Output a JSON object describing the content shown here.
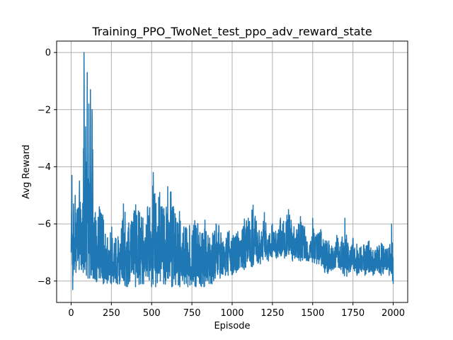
{
  "chart_data": {
    "type": "line",
    "title": "Training_PPO_TwoNet_test_ppo_adv_reward_state",
    "xlabel": "Episode",
    "ylabel": "Avg Reward",
    "xlim": [
      -90,
      2090
    ],
    "ylim": [
      -8.75,
      0.4
    ],
    "x_ticks": [
      0,
      250,
      500,
      750,
      1000,
      1250,
      1500,
      1750,
      2000
    ],
    "y_ticks": [
      0,
      -2,
      -4,
      -6,
      -8
    ],
    "x_tick_labels": [
      "0",
      "250",
      "500",
      "750",
      "1000",
      "1250",
      "1500",
      "1750",
      "2000"
    ],
    "y_tick_labels": [
      "0",
      "−2",
      "−4",
      "−6",
      "−8"
    ],
    "grid": true,
    "series": [
      {
        "color": "#1f77b4",
        "envelope_x": [
          0,
          5,
          10,
          15,
          20,
          25,
          30,
          40,
          50,
          60,
          65,
          70,
          75,
          80,
          85,
          90,
          95,
          100,
          105,
          110,
          115,
          120,
          125,
          130,
          140,
          150,
          160,
          175,
          200,
          225,
          250,
          275,
          300,
          325,
          350,
          375,
          400,
          425,
          450,
          475,
          500,
          510,
          525,
          550,
          575,
          600,
          625,
          650,
          675,
          700,
          725,
          750,
          775,
          800,
          825,
          850,
          875,
          900,
          925,
          950,
          975,
          1000,
          1025,
          1050,
          1075,
          1100,
          1125,
          1150,
          1175,
          1200,
          1225,
          1250,
          1275,
          1300,
          1325,
          1350,
          1375,
          1400,
          1425,
          1450,
          1475,
          1500,
          1525,
          1550,
          1575,
          1600,
          1625,
          1650,
          1675,
          1700,
          1725,
          1750,
          1775,
          1800,
          1825,
          1850,
          1875,
          1900,
          1925,
          1950,
          1975,
          1990,
          2000
        ],
        "y_max": [
          -6.6,
          -4.3,
          -5.8,
          -5.3,
          -6.4,
          -5.0,
          -4.4,
          -5.5,
          -4.0,
          -5.5,
          -3.9,
          -5.8,
          -3.6,
          0.0,
          -4.5,
          -2.6,
          -5.0,
          -0.7,
          -4.6,
          -1.8,
          -5.2,
          -1.3,
          -4.8,
          -2.0,
          -4.5,
          -5.6,
          -6.0,
          -5.4,
          -5.7,
          -6.5,
          -6.0,
          -6.5,
          -6.2,
          -5.3,
          -5.8,
          -5.9,
          -5.3,
          -5.6,
          -5.8,
          -5.4,
          -4.6,
          -4.2,
          -5.2,
          -4.9,
          -5.4,
          -4.7,
          -4.9,
          -5.8,
          -5.4,
          -6.1,
          -5.8,
          -6.4,
          -5.6,
          -6.3,
          -5.7,
          -6.4,
          -6.3,
          -6.0,
          -5.9,
          -6.8,
          -6.1,
          -6.5,
          -6.0,
          -6.6,
          -5.8,
          -5.8,
          -5.2,
          -5.9,
          -6.3,
          -5.6,
          -6.2,
          -6.0,
          -6.2,
          -5.8,
          -5.7,
          -5.5,
          -5.8,
          -6.2,
          -5.7,
          -6.1,
          -6.7,
          -5.8,
          -6.4,
          -6.2,
          -6.5,
          -6.6,
          -6.8,
          -6.4,
          -6.7,
          -5.8,
          -6.9,
          -6.5,
          -6.7,
          -6.8,
          -6.6,
          -6.6,
          -6.9,
          -6.8,
          -6.6,
          -6.9,
          -6.8,
          -6.0,
          -6.8
        ],
        "y_min": [
          -7.0,
          -7.2,
          -8.3,
          -7.5,
          -7.6,
          -7.4,
          -7.7,
          -7.5,
          -7.6,
          -7.4,
          -7.6,
          -7.5,
          -7.7,
          -7.4,
          -7.6,
          -7.5,
          -7.8,
          -7.6,
          -7.9,
          -7.8,
          -7.9,
          -8.0,
          -7.8,
          -8.0,
          -7.9,
          -8.1,
          -8.0,
          -8.0,
          -8.1,
          -8.1,
          -8.1,
          -8.2,
          -8.1,
          -8.2,
          -8.2,
          -8.1,
          -8.2,
          -8.2,
          -8.1,
          -8.2,
          -8.2,
          -8.1,
          -8.2,
          -8.2,
          -8.1,
          -8.2,
          -8.2,
          -8.2,
          -8.2,
          -8.2,
          -8.2,
          -8.2,
          -8.2,
          -8.2,
          -8.2,
          -8.1,
          -8.1,
          -8.0,
          -7.9,
          -7.9,
          -7.8,
          -7.8,
          -7.7,
          -7.7,
          -7.6,
          -7.5,
          -7.5,
          -7.4,
          -7.4,
          -7.3,
          -7.3,
          -7.2,
          -7.2,
          -7.2,
          -7.2,
          -7.3,
          -7.3,
          -7.3,
          -7.3,
          -7.3,
          -7.3,
          -7.4,
          -7.4,
          -7.5,
          -7.7,
          -7.8,
          -7.6,
          -7.5,
          -7.6,
          -8.0,
          -7.7,
          -7.6,
          -7.8,
          -7.7,
          -7.8,
          -7.7,
          -7.8,
          -7.7,
          -7.8,
          -7.7,
          -7.8,
          -8.0,
          -8.1
        ]
      }
    ]
  }
}
